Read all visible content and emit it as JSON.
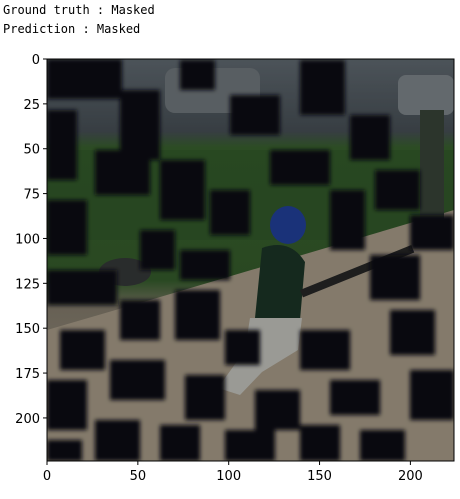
{
  "captions": {
    "ground_truth": "Ground truth : Masked",
    "prediction": "Prediction : Masked"
  },
  "axes": {
    "x_ticks": [
      "0",
      "50",
      "100",
      "150",
      "200"
    ],
    "y_ticks": [
      "0",
      "25",
      "50",
      "75",
      "100",
      "125",
      "150",
      "175",
      "200"
    ],
    "x_range": [
      0,
      224
    ],
    "y_range": [
      0,
      224
    ]
  },
  "image": {
    "description_colors": {
      "dark_mask": "#0b0f14",
      "grass": "#3f6e33",
      "dirt": "#b8ab96",
      "sky_bg": "#55606a",
      "jersey": "#1f3b2a",
      "helmet": "#1f3f9a",
      "pants": "#d8d8d2"
    }
  }
}
